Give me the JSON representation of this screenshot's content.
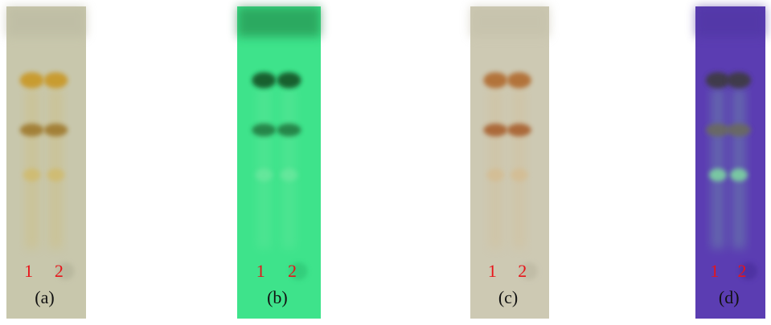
{
  "panels": [
    {
      "label": "(a)",
      "lanes": [
        "1",
        "2"
      ]
    },
    {
      "label": "(b)",
      "lanes": [
        "1",
        "2"
      ]
    },
    {
      "label": "(c)",
      "lanes": [
        "1",
        "2"
      ]
    },
    {
      "label": "(d)",
      "lanes": [
        "1",
        "2"
      ]
    }
  ]
}
